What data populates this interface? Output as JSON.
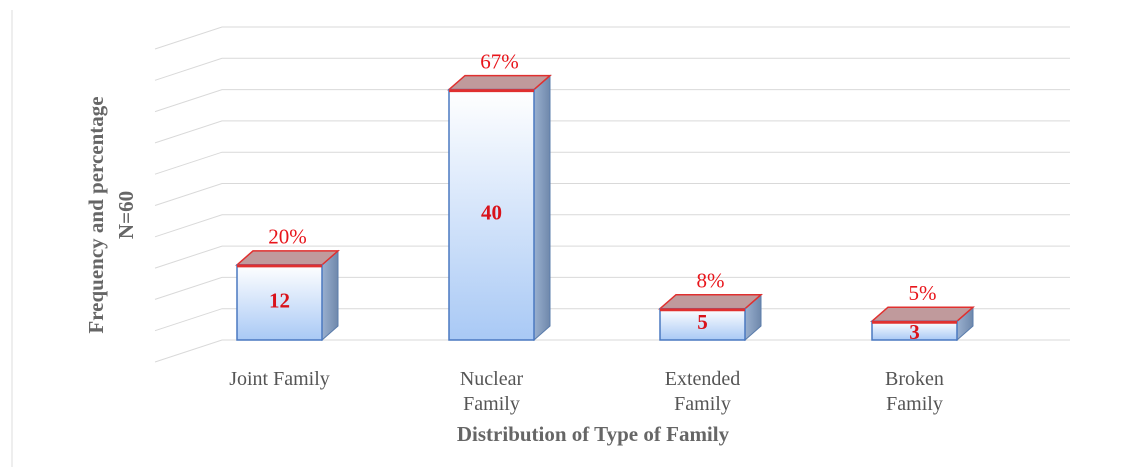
{
  "chart_data": {
    "type": "bar3d",
    "y_label": [
      "Frequency and percentage",
      "N=60"
    ],
    "x_label": "Distribution of Type of Family",
    "categories": [
      [
        "Joint Family"
      ],
      [
        "Nuclear",
        "Family"
      ],
      [
        "Extended",
        "Family"
      ],
      [
        "Broken",
        "Family"
      ]
    ],
    "values": [
      12,
      40,
      5,
      3
    ],
    "percent_labels": [
      "20%",
      "67%",
      "8%",
      "5%"
    ],
    "ylim": [
      0,
      50
    ],
    "yticks": [
      0,
      5,
      10,
      15,
      20,
      25,
      30,
      35,
      40,
      45,
      50
    ],
    "grid": true,
    "color": "#cfe2fb"
  }
}
